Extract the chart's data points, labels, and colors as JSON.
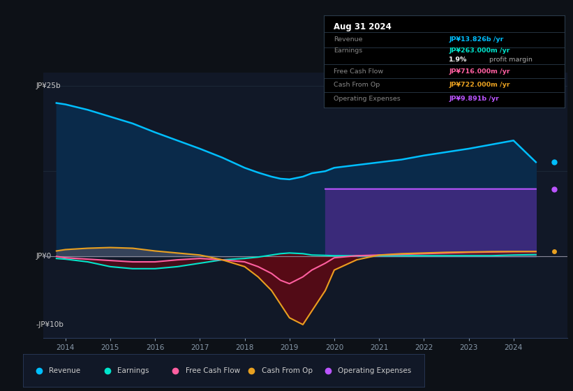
{
  "bg_color": "#0d1117",
  "plot_bg_color": "#111827",
  "revenue_color": "#00bfff",
  "revenue_fill": "#0a2a4a",
  "earnings_color": "#00e5cc",
  "fcf_color": "#ff5fa0",
  "cashop_color": "#e8a020",
  "opex_color": "#bb55ff",
  "opex_fill": "#3a2a7a",
  "dark_red_fill": "#5a0a15",
  "cashop_fill": "#4a4020",
  "grid_color": "#1e2a3a",
  "zero_line_color": "#888899",
  "ylim": [
    -12,
    27
  ],
  "xlim": [
    2013.5,
    2025.2
  ],
  "xticks": [
    2014,
    2015,
    2016,
    2017,
    2018,
    2019,
    2020,
    2021,
    2022,
    2023,
    2024
  ],
  "years": [
    2013.8,
    2014.0,
    2014.5,
    2015.0,
    2015.5,
    2016.0,
    2016.5,
    2017.0,
    2017.5,
    2018.0,
    2018.3,
    2018.6,
    2018.8,
    2019.0,
    2019.3,
    2019.5,
    2019.8,
    2020.0,
    2020.5,
    2021.0,
    2021.5,
    2022.0,
    2022.5,
    2023.0,
    2023.5,
    2024.0,
    2024.5
  ],
  "revenue": [
    22.5,
    22.3,
    21.5,
    20.5,
    19.5,
    18.2,
    17.0,
    15.8,
    14.5,
    13.0,
    12.3,
    11.7,
    11.4,
    11.3,
    11.7,
    12.2,
    12.5,
    13.0,
    13.4,
    13.8,
    14.2,
    14.8,
    15.3,
    15.8,
    16.4,
    17.0,
    13.826
  ],
  "earnings": [
    -0.3,
    -0.4,
    -0.8,
    -1.5,
    -1.8,
    -1.8,
    -1.5,
    -1.0,
    -0.5,
    -0.3,
    -0.1,
    0.2,
    0.4,
    0.5,
    0.4,
    0.2,
    0.15,
    0.1,
    0.1,
    0.1,
    0.1,
    0.1,
    0.1,
    0.1,
    0.1,
    0.2,
    0.263
  ],
  "fcf": [
    0.0,
    -0.2,
    -0.4,
    -0.6,
    -0.8,
    -0.8,
    -0.5,
    -0.3,
    -0.5,
    -0.8,
    -1.5,
    -2.5,
    -3.5,
    -4.0,
    -3.0,
    -2.0,
    -1.0,
    -0.2,
    0.1,
    0.2,
    0.3,
    0.4,
    0.5,
    0.6,
    0.65,
    0.7,
    0.716
  ],
  "cashop": [
    0.8,
    1.0,
    1.2,
    1.3,
    1.2,
    0.8,
    0.5,
    0.2,
    -0.5,
    -1.5,
    -3.0,
    -5.0,
    -7.0,
    -9.0,
    -10.0,
    -8.0,
    -5.0,
    -2.0,
    -0.5,
    0.2,
    0.4,
    0.5,
    0.6,
    0.65,
    0.7,
    0.72,
    0.722
  ],
  "opex_years": [
    2019.8,
    2020.0,
    2021.0,
    2022.0,
    2023.0,
    2024.0,
    2024.5
  ],
  "opex": [
    9.89,
    9.89,
    9.89,
    9.89,
    9.89,
    9.891,
    9.891
  ],
  "legend_items": [
    {
      "label": "Revenue",
      "color": "#00bfff"
    },
    {
      "label": "Earnings",
      "color": "#00e5cc"
    },
    {
      "label": "Free Cash Flow",
      "color": "#ff5fa0"
    },
    {
      "label": "Cash From Op",
      "color": "#e8a020"
    },
    {
      "label": "Operating Expenses",
      "color": "#bb55ff"
    }
  ]
}
